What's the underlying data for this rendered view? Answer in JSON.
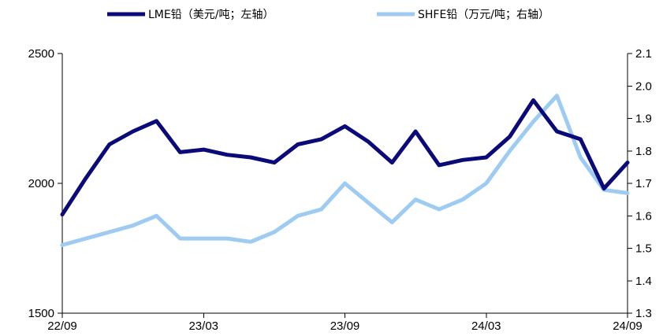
{
  "chart_data": {
    "type": "line",
    "x": [
      "22/09",
      "22/10",
      "22/11",
      "22/12",
      "23/01",
      "23/02",
      "23/03",
      "23/04",
      "23/05",
      "23/06",
      "23/07",
      "23/08",
      "23/09",
      "23/10",
      "23/11",
      "23/12",
      "24/01",
      "24/02",
      "24/03",
      "24/04",
      "24/05",
      "24/06",
      "24/07",
      "24/08",
      "24/09"
    ],
    "x_ticks": [
      "22/09",
      "23/03",
      "23/09",
      "24/03",
      "24/09"
    ],
    "series": [
      {
        "name": "LME铅（美元/吨；左轴）",
        "axis": "left",
        "color": "#0a0a78",
        "values": [
          1880,
          2020,
          2150,
          2200,
          2240,
          2120,
          2130,
          2110,
          2100,
          2080,
          2150,
          2170,
          2220,
          2160,
          2080,
          2200,
          2070,
          2090,
          2100,
          2180,
          2320,
          2200,
          2170,
          1980,
          2080
        ]
      },
      {
        "name": "SHFE铅（万元/吨；右轴）",
        "axis": "right",
        "color": "#9dcbf2",
        "values": [
          1.51,
          1.53,
          1.55,
          1.57,
          1.6,
          1.53,
          1.53,
          1.53,
          1.52,
          1.55,
          1.6,
          1.62,
          1.7,
          1.64,
          1.58,
          1.65,
          1.62,
          1.65,
          1.7,
          1.8,
          1.89,
          1.97,
          1.78,
          1.68,
          1.67
        ]
      }
    ],
    "yleft": {
      "lim": [
        1500,
        2500
      ],
      "ticks": [
        "1500",
        "2000",
        "2500"
      ]
    },
    "yright": {
      "lim": [
        1.3,
        2.1
      ],
      "ticks": [
        "1.3",
        "1.4",
        "1.5",
        "1.6",
        "1.7",
        "1.8",
        "1.9",
        "2.0",
        "2.1"
      ]
    },
    "legend_position": "top-center",
    "grid": false
  }
}
